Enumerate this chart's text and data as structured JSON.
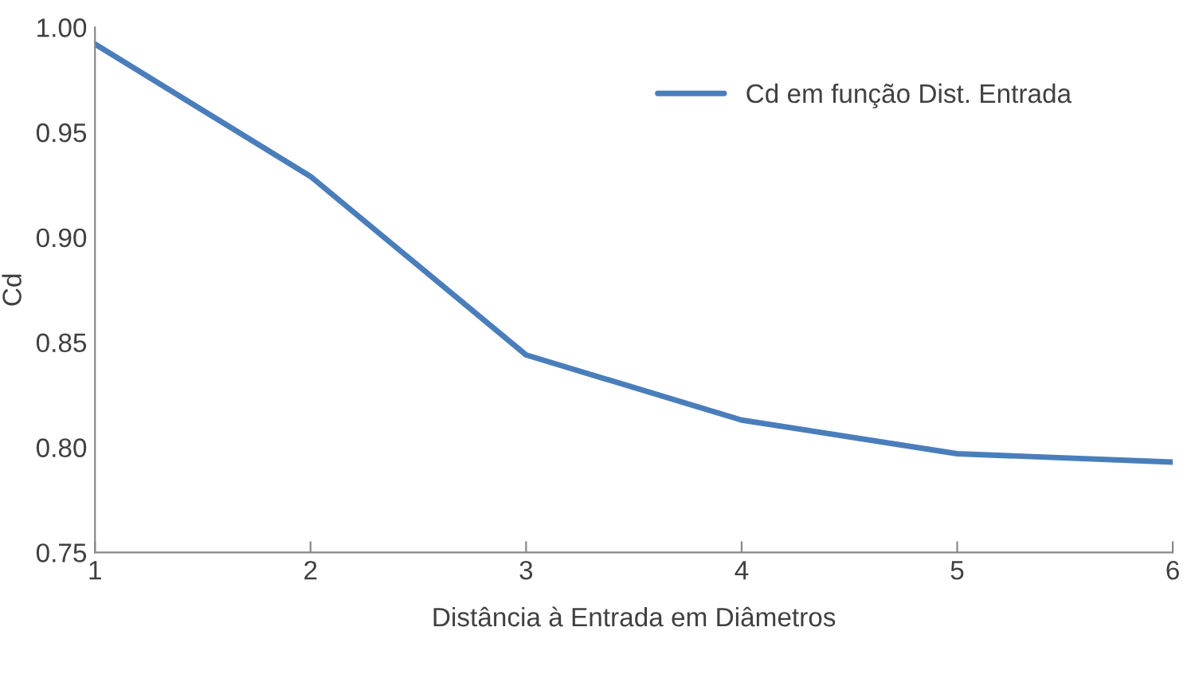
{
  "chart_data": {
    "type": "line",
    "xlabel": "Distância à Entrada em Diâmetros",
    "ylabel": "Cd",
    "x": [
      1,
      2,
      3,
      4,
      5,
      6
    ],
    "series": [
      {
        "name": "Cd em função Dist. Entrada",
        "color": "#4a7ebb",
        "values": [
          0.992,
          0.929,
          0.844,
          0.813,
          0.797,
          0.793
        ]
      }
    ],
    "xlim": [
      1,
      6
    ],
    "xticks": [
      1,
      2,
      3,
      4,
      5,
      6
    ],
    "ylim": [
      0.75,
      1.0
    ],
    "yticks": [
      {
        "value": 0.75,
        "label": "0.75"
      },
      {
        "value": 0.8,
        "label": "0.80"
      },
      {
        "value": 0.85,
        "label": "0.85"
      },
      {
        "value": 0.9,
        "label": "0.90"
      },
      {
        "value": 0.95,
        "label": "0.95"
      },
      {
        "value": 1.0,
        "label": "1.00"
      }
    ],
    "grid": false,
    "legend": "top right",
    "marker": "none",
    "line_style": "solid"
  }
}
